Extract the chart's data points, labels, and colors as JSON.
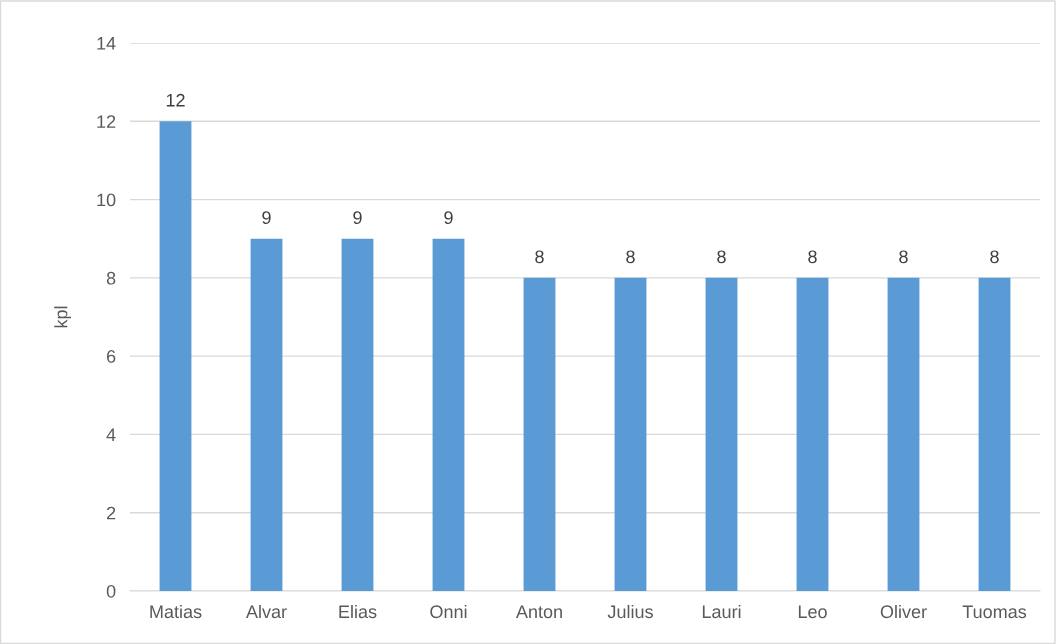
{
  "chart_data": {
    "type": "bar",
    "ylabel": "kpl",
    "categories": [
      "Matias",
      "Alvar",
      "Elias",
      "Onni",
      "Anton",
      "Julius",
      "Lauri",
      "Leo",
      "Oliver",
      "Tuomas"
    ],
    "values": [
      12,
      9,
      9,
      9,
      8,
      8,
      8,
      8,
      8,
      8
    ],
    "color": "#5b9bd5",
    "ylim": [
      0,
      14
    ],
    "yticks": [
      0,
      2,
      4,
      6,
      8,
      10,
      12,
      14
    ],
    "grid": "y",
    "data_labels": true
  }
}
